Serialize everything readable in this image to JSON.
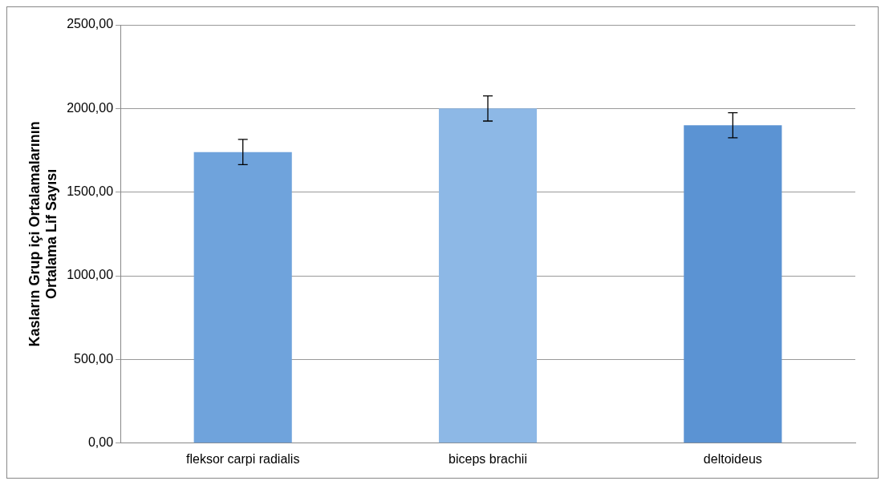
{
  "chart_data": {
    "type": "bar",
    "ylabel": "Kasların Grup içi Ortalamalarının Ortalama Lif Sayısı",
    "categories": [
      "fleksor carpi radialis",
      "biceps brachii",
      "deltoideus"
    ],
    "values": [
      1740,
      2000,
      1900
    ],
    "colors": [
      "#6fa3dc",
      "#8db8e6",
      "#5b93d3"
    ],
    "errors": [
      75,
      75,
      75
    ],
    "ylim": [
      0,
      2500
    ],
    "yticks": [
      {
        "value": 0,
        "label": "0,00"
      },
      {
        "value": 500,
        "label": "500,00"
      },
      {
        "value": 1000,
        "label": "1000,00"
      },
      {
        "value": 1500,
        "label": "1500,00"
      },
      {
        "value": 2000,
        "label": "2000,00"
      },
      {
        "value": 2500,
        "label": "2500,00"
      }
    ],
    "grid": "y",
    "legend": false
  }
}
